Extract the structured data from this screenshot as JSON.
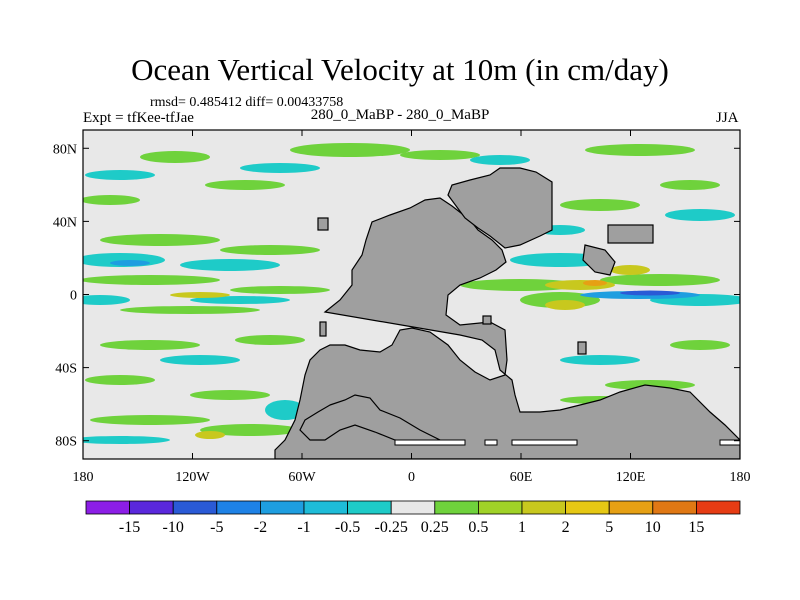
{
  "header": {
    "title": "Ocean Vertical Velocity at 10m (in cm/day)",
    "stats": "rmsd= 0.485412 diff= 0.00433758",
    "experiment": "Expt = tfKee-tfJae",
    "comparison": "280_0_MaBP - 280_0_MaBP",
    "season": "JJA"
  },
  "colors": {
    "land": "#9f9f9f",
    "near_zero": "#e8e8e8",
    "positive_small": "#6fd23c",
    "positive_mid": "#c8c81e",
    "positive_large": "#e6a014",
    "negative_small": "#1ecbc8",
    "negative_mid": "#1e9ee0",
    "negative_large": "#2a5ad6"
  },
  "map": {
    "projection": "cylindrical-equidistant",
    "lon_range": [
      -180,
      180
    ],
    "lat_range": [
      -90,
      90
    ],
    "lon_ticks": [
      {
        "value": -180,
        "label": "180"
      },
      {
        "value": -120,
        "label": "120W"
      },
      {
        "value": -60,
        "label": "60W"
      },
      {
        "value": 0,
        "label": "0"
      },
      {
        "value": 60,
        "label": "60E"
      },
      {
        "value": 120,
        "label": "120E"
      },
      {
        "value": 180,
        "label": "180"
      }
    ],
    "lat_ticks": [
      {
        "value": 80,
        "label": "80N"
      },
      {
        "value": 40,
        "label": "40N"
      },
      {
        "value": 0,
        "label": "0"
      },
      {
        "value": -40,
        "label": "40S"
      },
      {
        "value": -80,
        "label": "80S"
      }
    ],
    "field": "ocean vertical velocity difference at 10m",
    "units": "cm/day"
  },
  "colorbar": {
    "levels": [
      "-15",
      "-10",
      "-5",
      "-2",
      "-1",
      "-0.5",
      "-0.25",
      "0.25",
      "0.5",
      "1",
      "2",
      "5",
      "10",
      "15"
    ],
    "colors": [
      "#8c1ee6",
      "#5a28dc",
      "#2a5ad6",
      "#1e82e6",
      "#1e9ee0",
      "#1ebcd8",
      "#1ecbc8",
      "#e8e8e8",
      "#6fd23c",
      "#a0d228",
      "#c8c81e",
      "#e6c814",
      "#e6a014",
      "#e07814",
      "#e63c14"
    ]
  }
}
